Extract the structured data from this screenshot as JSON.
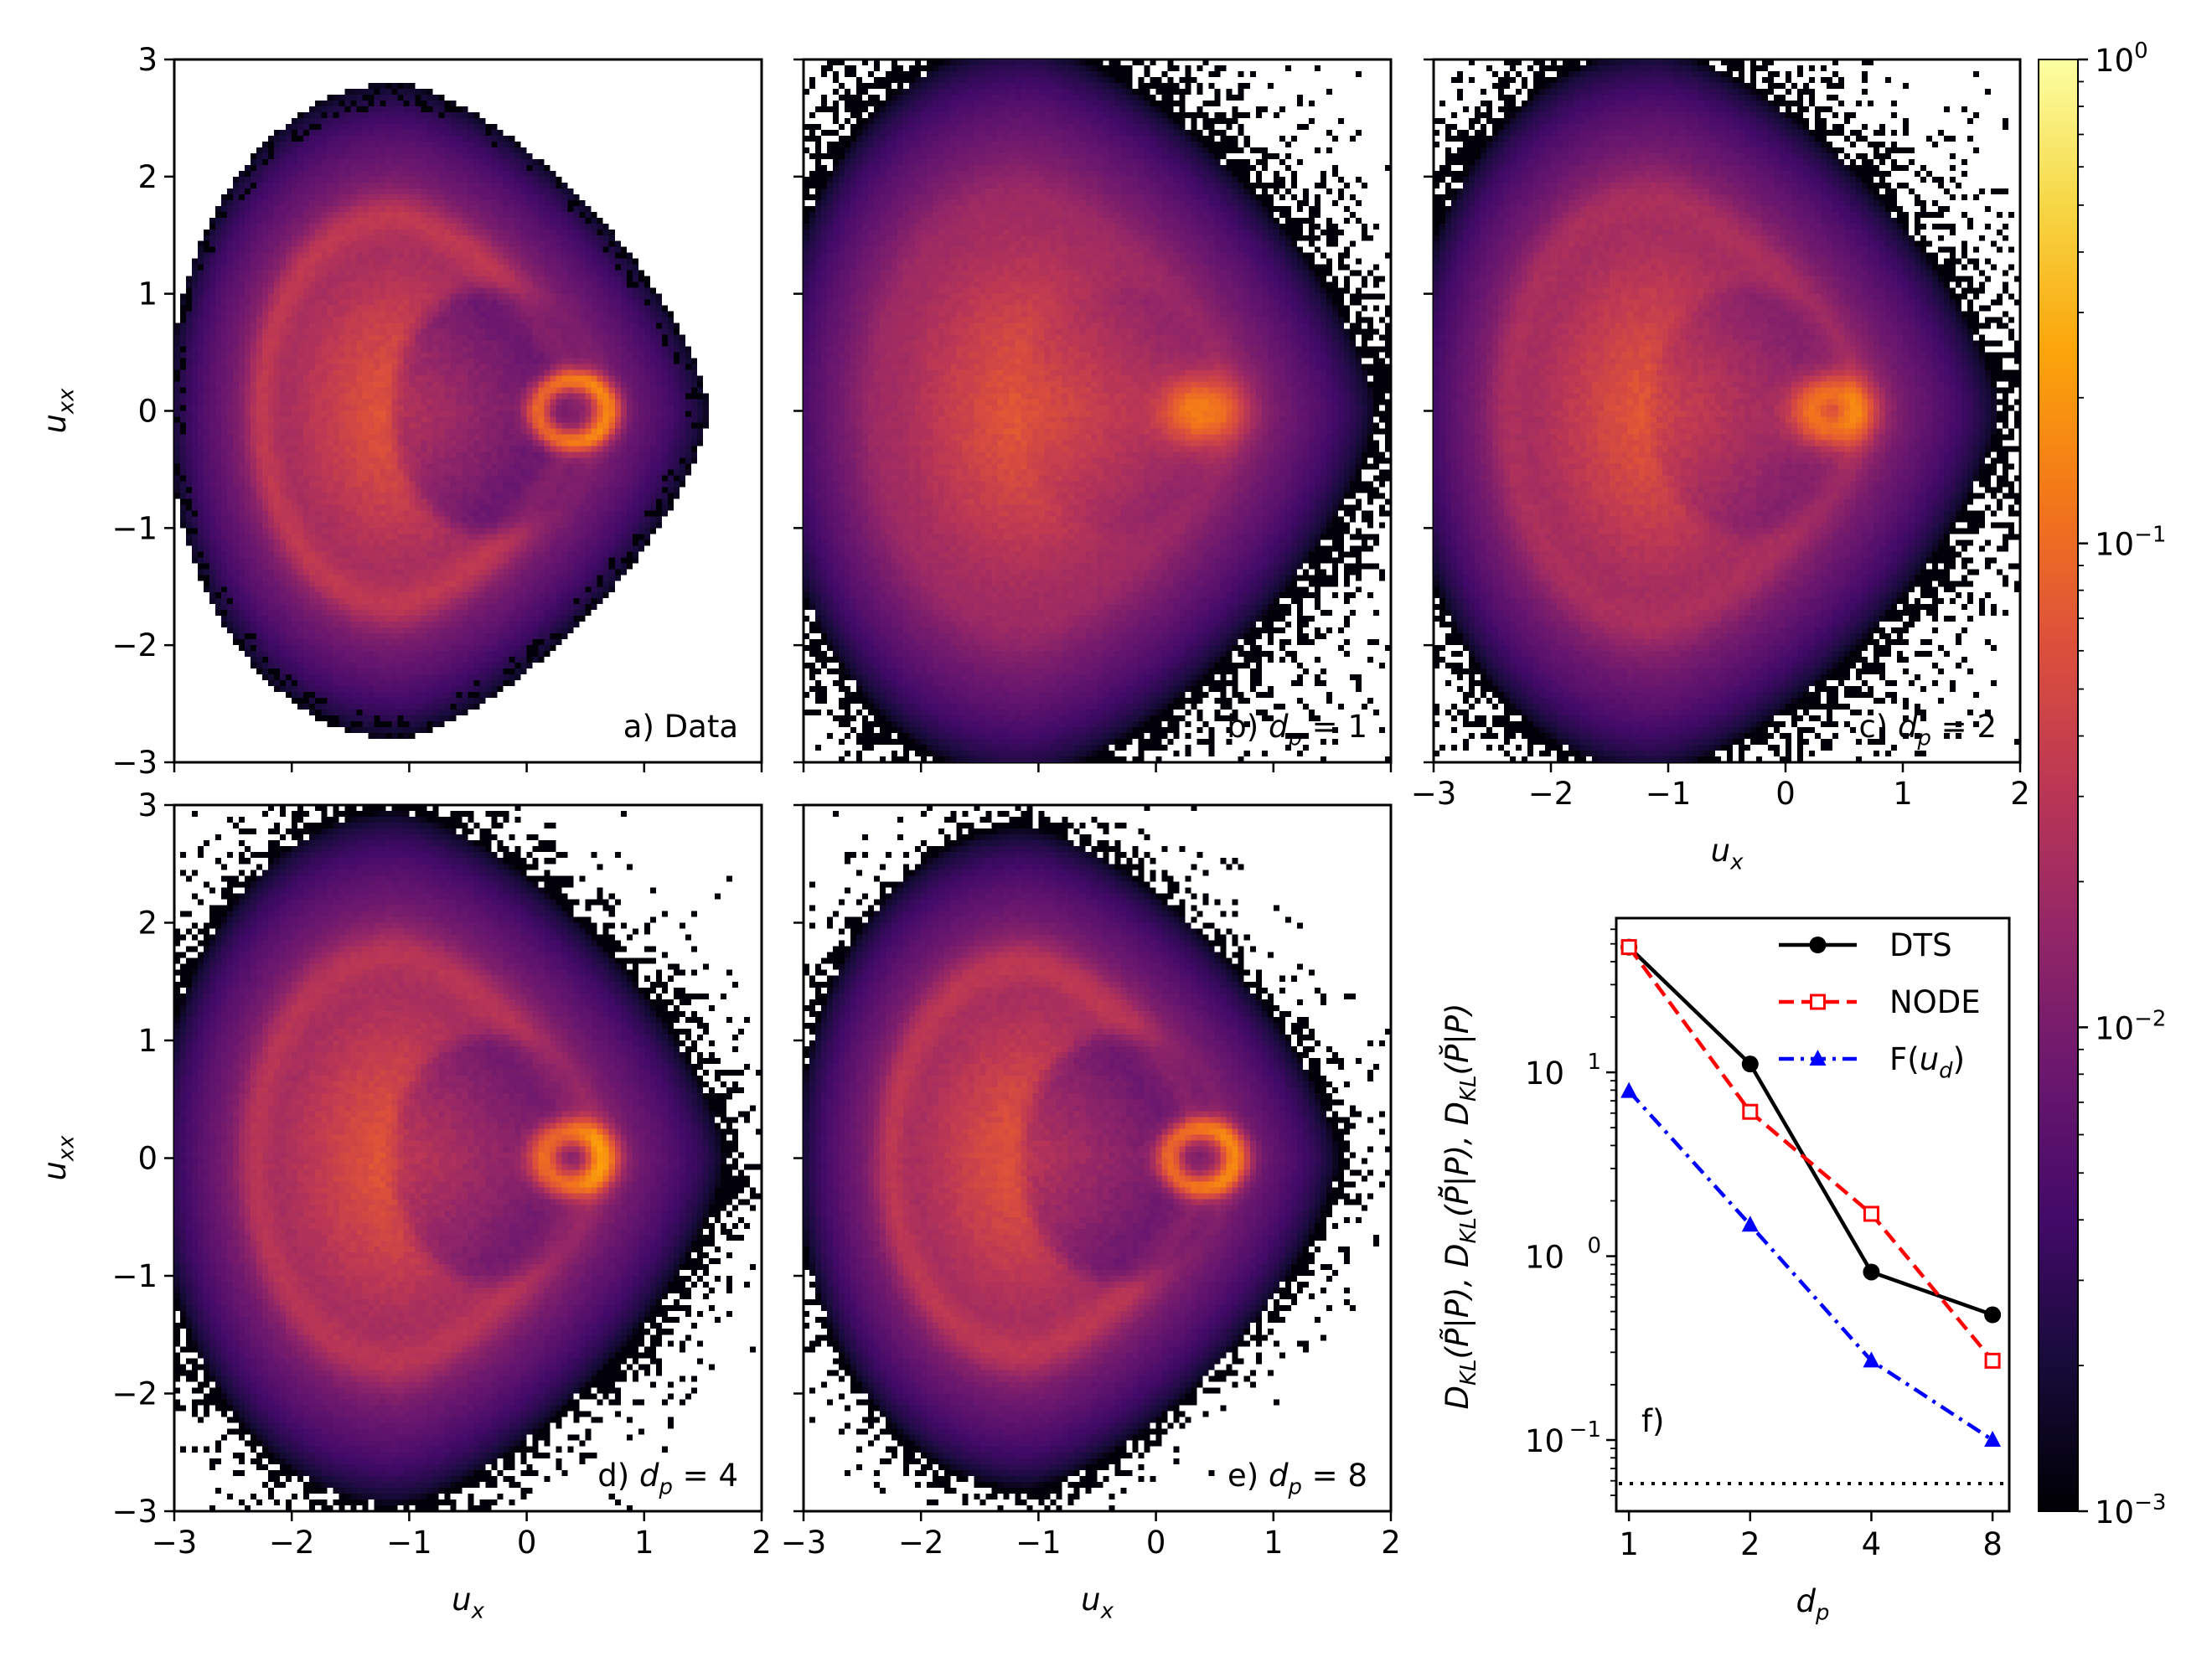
{
  "chart_data": [
    {
      "type": "heatmap",
      "panel": "a",
      "label": {
        "prefix": "a) Data",
        "var": "",
        "sub": "",
        "suffix": ""
      },
      "xlim": [
        -3,
        2
      ],
      "ylim": [
        -3,
        3
      ],
      "xticks": [
        "−3",
        "−2",
        "−1",
        "0",
        "1",
        "2"
      ],
      "yticks": [
        "−3",
        "−2",
        "−1",
        "0",
        "1",
        "2",
        "3"
      ],
      "show_xtick_labels": false,
      "show_ytick_labels": true,
      "ylabel": {
        "var": "u",
        "sub": "xx"
      }
    },
    {
      "type": "heatmap",
      "panel": "b",
      "label": {
        "prefix": "b) ",
        "var": "d",
        "sub": "p",
        "suffix": " = 1"
      },
      "xlim": [
        -3,
        2
      ],
      "ylim": [
        -3,
        3
      ],
      "xticks": [
        "−3",
        "−2",
        "−1",
        "0",
        "1",
        "2"
      ],
      "yticks": [
        "−3",
        "−2",
        "−1",
        "0",
        "1",
        "2",
        "3"
      ],
      "show_xtick_labels": false,
      "show_ytick_labels": false
    },
    {
      "type": "heatmap",
      "panel": "c",
      "label": {
        "prefix": "c) ",
        "var": "d",
        "sub": "p",
        "suffix": " = 2"
      },
      "xlim": [
        -3,
        2
      ],
      "ylim": [
        -3,
        3
      ],
      "xticks": [
        "−3",
        "−2",
        "−1",
        "0",
        "1",
        "2"
      ],
      "yticks": [
        "−3",
        "−2",
        "−1",
        "0",
        "1",
        "2",
        "3"
      ],
      "show_xtick_labels": true,
      "show_ytick_labels": false,
      "xlabel": {
        "var": "u",
        "sub": "x"
      }
    },
    {
      "type": "heatmap",
      "panel": "d",
      "label": {
        "prefix": "d) ",
        "var": "d",
        "sub": "p",
        "suffix": " = 4"
      },
      "xlim": [
        -3,
        2
      ],
      "ylim": [
        -3,
        3
      ],
      "xticks": [
        "−3",
        "−2",
        "−1",
        "0",
        "1",
        "2"
      ],
      "yticks": [
        "−3",
        "−2",
        "−1",
        "0",
        "1",
        "2",
        "3"
      ],
      "show_xtick_labels": true,
      "show_ytick_labels": true,
      "xlabel": {
        "var": "u",
        "sub": "x"
      },
      "ylabel": {
        "var": "u",
        "sub": "xx"
      }
    },
    {
      "type": "heatmap",
      "panel": "e",
      "label": {
        "prefix": "e) ",
        "var": "d",
        "sub": "p",
        "suffix": " = 8"
      },
      "xlim": [
        -3,
        2
      ],
      "ylim": [
        -3,
        3
      ],
      "xticks": [
        "−3",
        "−2",
        "−1",
        "0",
        "1",
        "2"
      ],
      "yticks": [
        "−3",
        "−2",
        "−1",
        "0",
        "1",
        "2",
        "3"
      ],
      "show_xtick_labels": true,
      "show_ytick_labels": false,
      "xlabel": {
        "var": "u",
        "sub": "x"
      }
    },
    {
      "type": "line",
      "panel": "f",
      "label": "f)",
      "x": [
        1,
        2,
        4,
        8
      ],
      "xscale": "log2",
      "yscale": "log10",
      "xlim": [
        0.93,
        8.8
      ],
      "ylim": [
        0.041,
        69
      ],
      "xticks": [
        "1",
        "2",
        "4",
        "8"
      ],
      "yticks": [
        {
          "base": "10",
          "exp": "1",
          "value": 10
        },
        {
          "base": "10",
          "exp": "0",
          "value": 1
        },
        {
          "base": "10",
          "exp": "−1",
          "value": 0.1
        }
      ],
      "xlabel": {
        "var": "d",
        "sub": "p"
      },
      "ylabel": [
        {
          "main": "D",
          "sub": "KL",
          "arg": "(P̃|P), "
        },
        {
          "main": "D",
          "sub": "KL",
          "arg": "(P̃̆|P), "
        },
        {
          "main": "D",
          "sub": "KL",
          "arg": "(P̆|P)"
        }
      ],
      "legend_placement": "top-right",
      "series": [
        {
          "name": "DTS",
          "values": [
            48,
            11.1,
            0.82,
            0.48
          ],
          "color": "#000000",
          "linestyle": "solid",
          "marker": "filled-circle"
        },
        {
          "name": "NODE",
          "values": [
            48,
            6.1,
            1.7,
            0.27
          ],
          "color": "#ff0000",
          "linestyle": "dashed",
          "marker": "open-square"
        },
        {
          "name": "F(u_d)",
          "legend": {
            "prefix": "F(",
            "var": "u",
            "sub": "d",
            "suffix": ")"
          },
          "values": [
            7.9,
            1.48,
            0.27,
            0.1
          ],
          "color": "#0000ff",
          "linestyle": "dash-dot",
          "marker": "filled-triangle"
        }
      ],
      "reference_line": {
        "value": 0.058,
        "linestyle": "dotted",
        "color": "#000000"
      }
    }
  ],
  "colorbar": {
    "colormap": "inferno",
    "scale": "log10",
    "range": [
      0.001,
      1
    ],
    "ticks": [
      {
        "base": "10",
        "exp": "0"
      },
      {
        "base": "10",
        "exp": "−1"
      },
      {
        "base": "10",
        "exp": "−2"
      },
      {
        "base": "10",
        "exp": "−3"
      }
    ],
    "stops": [
      "#000004",
      "#160b39",
      "#420a68",
      "#6a176e",
      "#932667",
      "#bc3754",
      "#dd513a",
      "#f37819",
      "#fca50a",
      "#f6d746",
      "#fcffa4"
    ]
  }
}
